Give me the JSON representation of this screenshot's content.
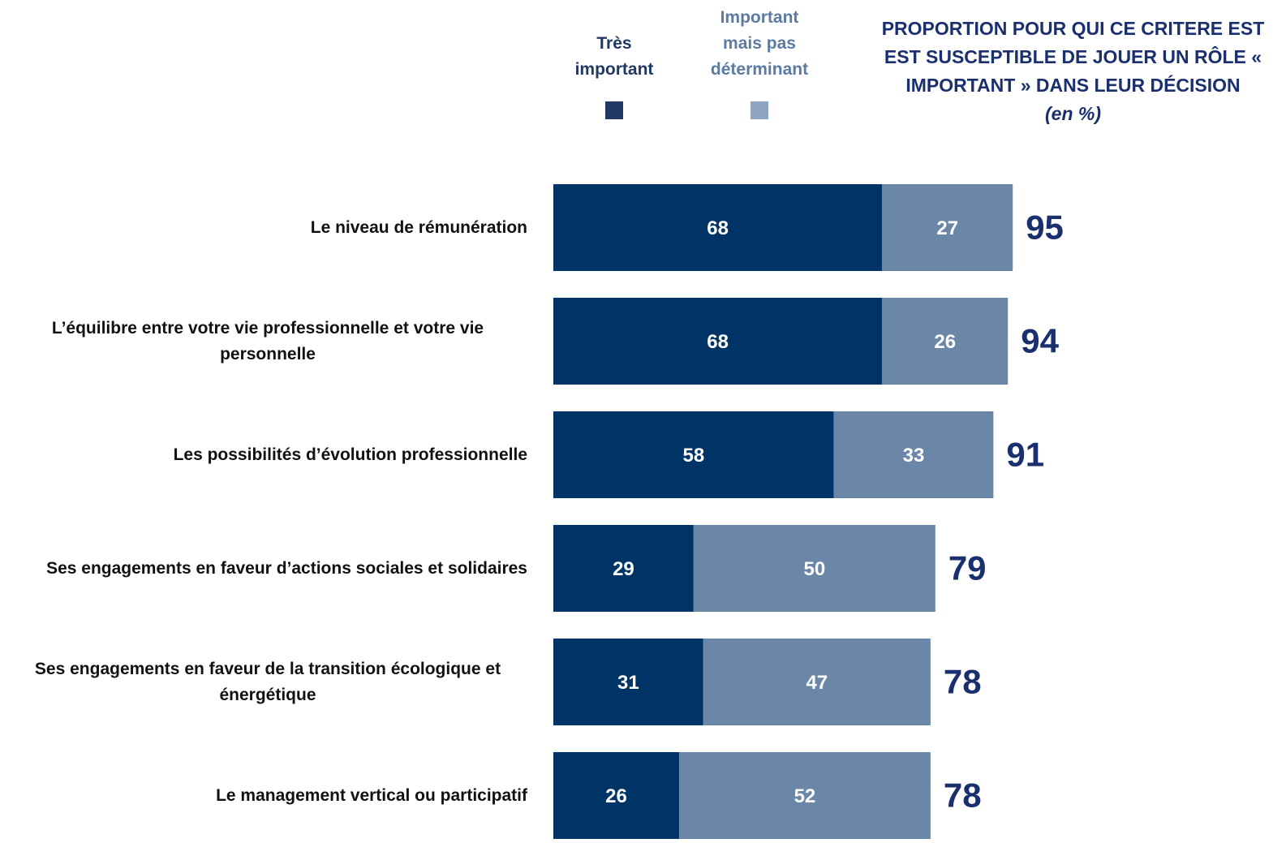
{
  "chart_data": {
    "type": "stacked_bar",
    "title": "PROPORTION POUR QUI CE CRITERE EST EST SUSCEPTIBLE DE JOUER UN RÔLE « IMPORTANT » DANS LEUR DÉCISION",
    "subtitle": "(en %)",
    "categories": [
      "Le niveau de rémunération",
      "L’équilibre entre votre vie professionnelle et votre vie personnelle",
      "Les possibilités d’évolution professionnelle",
      "Ses engagements en faveur d’actions sociales et solidaires",
      "Ses engagements en faveur de la transition écologique et énergétique",
      "Le management vertical ou participatif"
    ],
    "series": [
      {
        "name": "Très important",
        "color": "#003366",
        "legend_color": "#1f3864",
        "values": [
          68,
          68,
          58,
          29,
          31,
          26
        ]
      },
      {
        "name": "Important mais pas déterminant",
        "color": "#6a87a7",
        "legend_color": "#8ea6c1",
        "values": [
          27,
          26,
          33,
          50,
          47,
          52
        ]
      }
    ],
    "totals": [
      95,
      94,
      91,
      79,
      78,
      78
    ]
  }
}
